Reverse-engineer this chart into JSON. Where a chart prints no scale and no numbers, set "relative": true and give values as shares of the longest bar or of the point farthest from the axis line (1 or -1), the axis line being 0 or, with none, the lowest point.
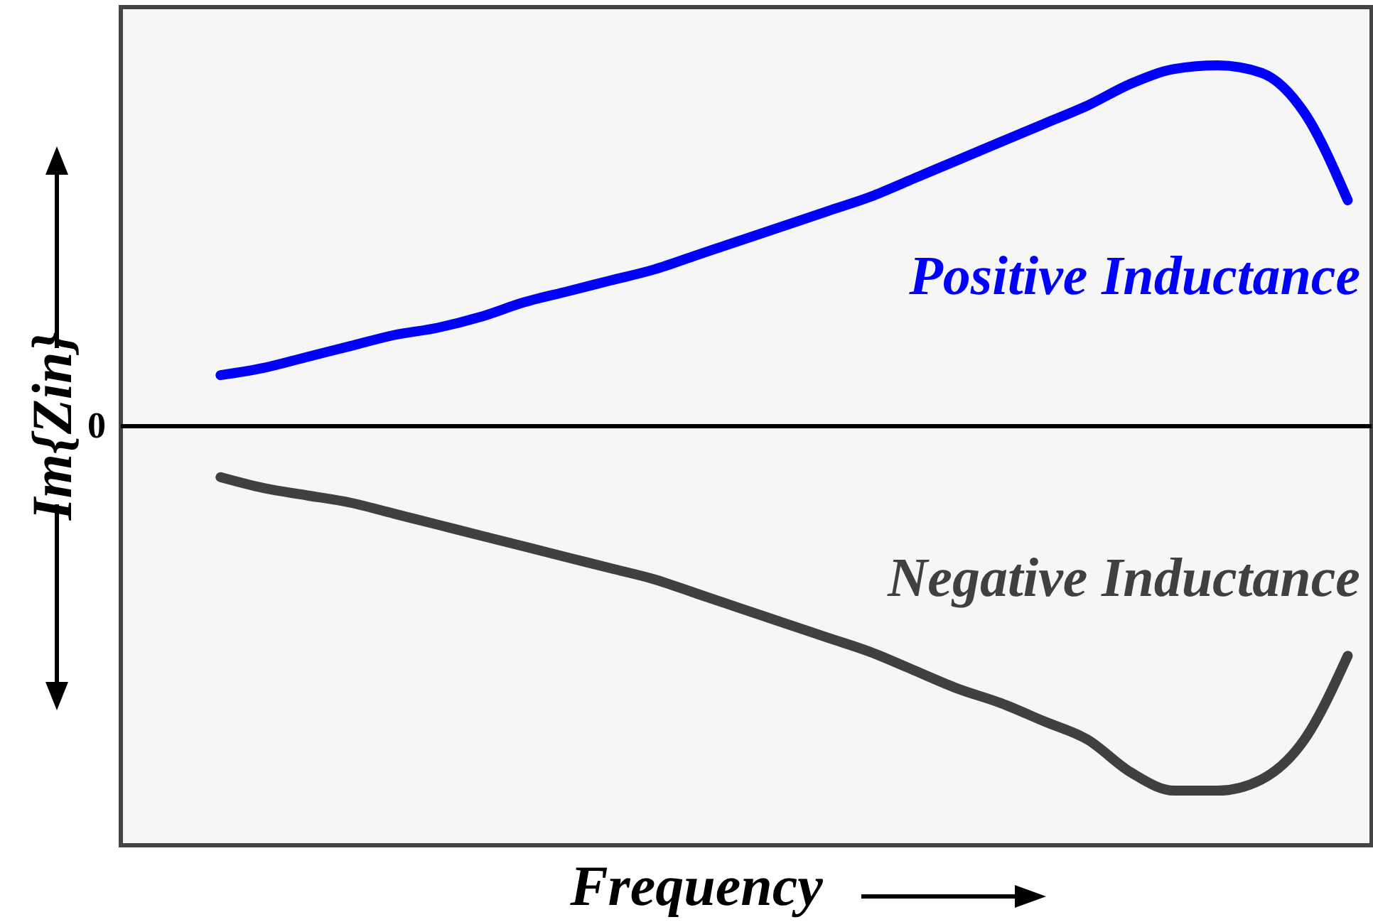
{
  "chart_data": {
    "type": "line",
    "relative": true,
    "xlabel": "Frequency",
    "ylabel": "Im{Zin}",
    "line_style": "solid",
    "categories": [
      null,
      null,
      null,
      null,
      null,
      null,
      null,
      null,
      null,
      null,
      null,
      null,
      null,
      null,
      null,
      null,
      null,
      null,
      null,
      null,
      null,
      null,
      null,
      null,
      null,
      null,
      null
    ],
    "ref_lines": [
      {
        "axis": "y",
        "value": 0,
        "label": "0",
        "color": "#000000"
      }
    ],
    "series": [
      {
        "name": "Positive Inductance",
        "color": "#0000ff",
        "values": [
          0.14,
          0.16,
          0.19,
          0.22,
          0.25,
          0.27,
          0.3,
          0.34,
          0.37,
          0.4,
          0.43,
          0.47,
          0.51,
          0.55,
          0.59,
          0.63,
          0.68,
          0.73,
          0.78,
          0.83,
          0.88,
          0.94,
          0.98,
          0.99,
          0.97,
          0.86,
          0.62
        ]
      },
      {
        "name": "Negative Inductance",
        "color": "#404040",
        "values": [
          -0.14,
          -0.17,
          -0.19,
          -0.21,
          -0.24,
          -0.27,
          -0.3,
          -0.33,
          -0.36,
          -0.39,
          -0.42,
          -0.46,
          -0.5,
          -0.54,
          -0.58,
          -0.62,
          -0.67,
          -0.72,
          -0.76,
          -0.81,
          -0.86,
          -0.95,
          -1.0,
          -1.0,
          -0.97,
          -0.86,
          -0.63
        ]
      }
    ]
  }
}
